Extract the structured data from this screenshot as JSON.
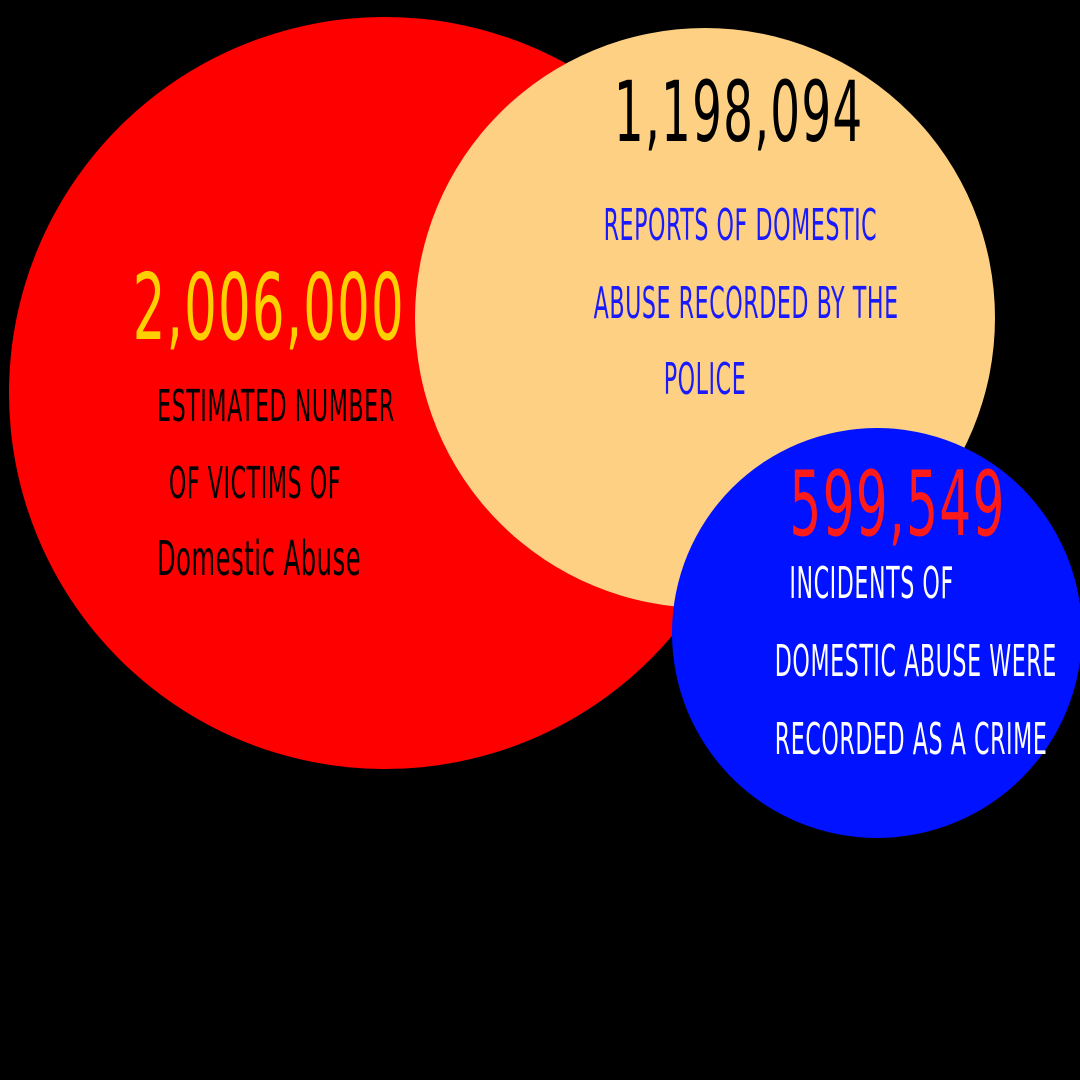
{
  "colors": {
    "background": "#000000",
    "victims_circle": "#ff0000",
    "reports_circle": "#fdd083",
    "crimes_circle": "#0012ff",
    "victims_number": "#ffd000",
    "reports_number": "#000000",
    "crimes_number": "#ff1a1a",
    "victims_label": "#000000",
    "reports_label": "#1a1aff",
    "crimes_label": "#ffffff"
  },
  "victims": {
    "value": "2,006,000",
    "label_lines": [
      "estimated number",
      "of victims of",
      "Domestic Abuse"
    ]
  },
  "reports": {
    "value": "1,198,094",
    "label_lines": [
      "reports of domestic",
      "abuse recorded by the",
      "police"
    ]
  },
  "crimes": {
    "value": "599,549",
    "label_lines": [
      "incidents of",
      "domestic abuse were",
      "recorded as a crime"
    ]
  }
}
